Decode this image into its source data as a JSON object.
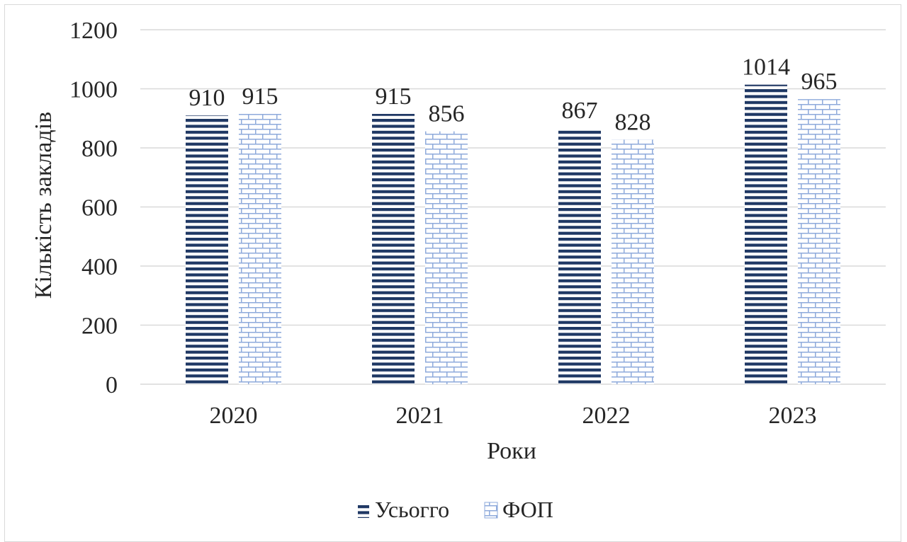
{
  "chart_data": {
    "type": "bar",
    "title": "",
    "xlabel": "Роки",
    "ylabel": "Кількість закладів",
    "categories": [
      "2020",
      "2021",
      "2022",
      "2023"
    ],
    "series": [
      {
        "name": "Усьогго",
        "values": [
          910,
          915,
          867,
          1014
        ],
        "color": "#1f3864",
        "pattern": "horizontal-stripes"
      },
      {
        "name": "ФОП",
        "values": [
          915,
          856,
          828,
          965
        ],
        "color": "#8eaadb",
        "pattern": "brick"
      }
    ],
    "ylim": [
      0,
      1200
    ],
    "yticks": [
      0,
      200,
      400,
      600,
      800,
      1000,
      1200
    ],
    "grid": true,
    "legend": "bottom",
    "data_labels": true
  }
}
